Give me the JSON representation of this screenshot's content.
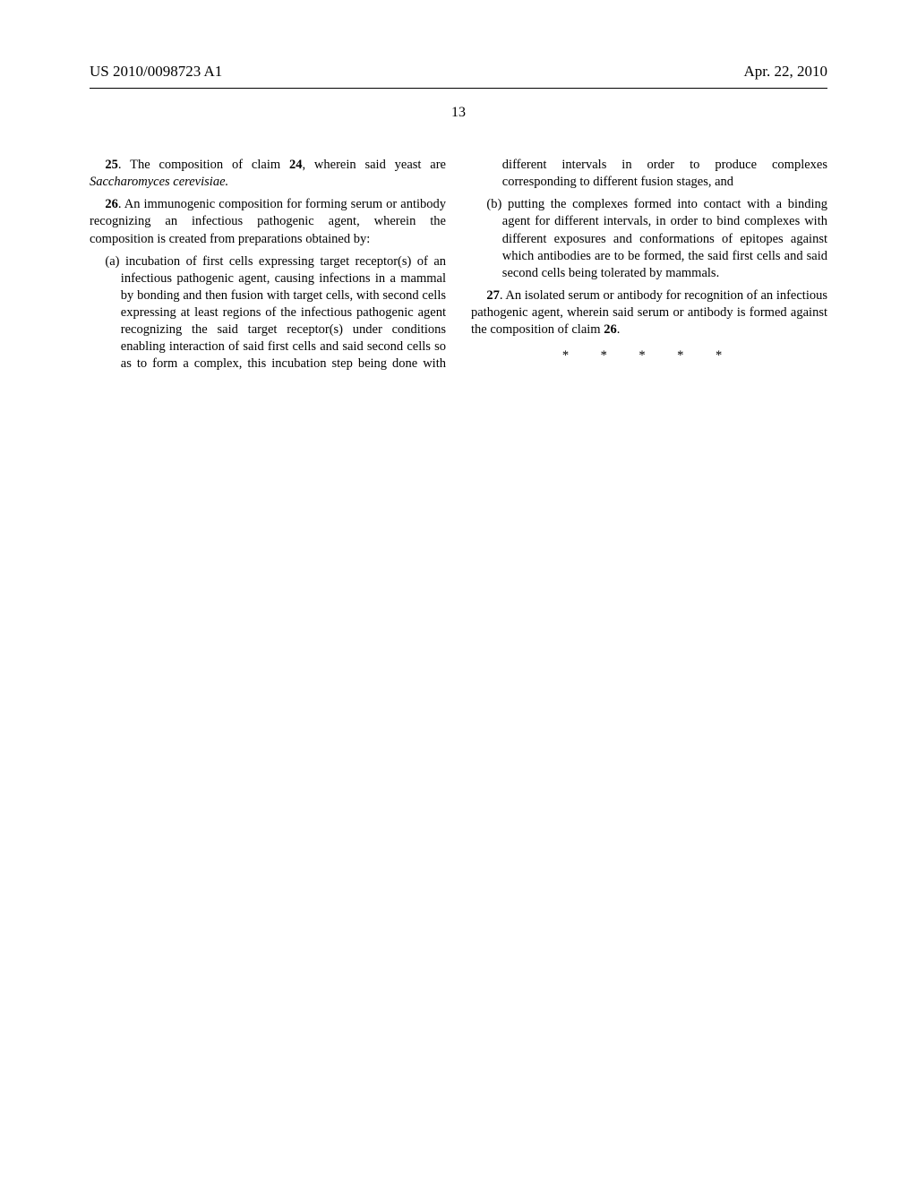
{
  "header": {
    "pubNumber": "US 2010/0098723 A1",
    "pubDate": "Apr. 22, 2010"
  },
  "pageNumber": "13",
  "claims": {
    "c25": {
      "num": "25",
      "text": ". The composition of claim ",
      "ref": "24",
      "text2": ", wherein said yeast are ",
      "ital": "Saccharomyces cerevisiae."
    },
    "c26": {
      "num": "26",
      "lead": ". An immunogenic composition for forming serum or antibody recognizing an infectious pathogenic agent, wherein the composition is created from preparations obtained by:",
      "a": "(a) incubation of first cells expressing target receptor(s) of an infectious pathogenic agent, causing infections in a mammal by bonding and then fusion with target cells, with second cells expressing at least regions of the infectious pathogenic agent recognizing the said target receptor(s) under conditions enabling interaction of said first cells and said second cells so as to form a complex, this incubation step being done with different intervals in order to produce complexes corresponding to different fusion stages, and",
      "b": "(b) putting the complexes formed into contact with a binding agent for different intervals, in order to bind complexes with different exposures and conformations of epitopes against which antibodies are to be formed, the said first cells and said second cells being tolerated by mammals."
    },
    "c27": {
      "num": "27",
      "text": ". An isolated serum or antibody for recognition of an infectious pathogenic agent, wherein said serum or antibody is formed against the composition of claim ",
      "ref": "26",
      "text2": "."
    }
  },
  "stars": "*  *  *  *  *"
}
